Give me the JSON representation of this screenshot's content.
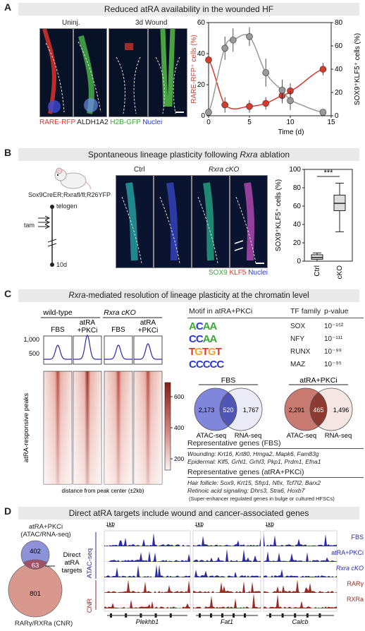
{
  "panel_a": {
    "letter": "A",
    "title": "Reduced atRA availability in the wounded HF",
    "image_labels": {
      "uninj": "Uninj.",
      "wound": "3d Wound"
    },
    "stain": {
      "rare": "RARE-RFP",
      "aldh": "ALDH1A2",
      "h2b": "H2B-GFP",
      "nuclei": "Nuclei"
    },
    "colors": {
      "rare": "#e8342a",
      "aldh": "#222222",
      "h2b": "#3aa83a",
      "nuclei": "#2a39d6"
    },
    "chart_data": {
      "type": "line",
      "xlabel": "Time (d)",
      "xlim": [
        0,
        15
      ],
      "xticks": [
        0,
        5,
        10,
        15
      ],
      "ylabel_left": "RARE-RFP⁺ cells (%)",
      "ylim_left": [
        0,
        60
      ],
      "yticks_left": [
        0,
        20,
        40,
        60
      ],
      "ylabel_right": "SOX9⁺KLF5⁺ cells (%)",
      "ylim_right": [
        0,
        80
      ],
      "yticks_right": [
        0,
        20,
        40,
        60,
        80
      ],
      "series": [
        {
          "axis": "left",
          "color": "#d63a2a",
          "points": [
            [
              0,
              36,
              8
            ],
            [
              2,
              7,
              5
            ],
            [
              5,
              6,
              4
            ],
            [
              7,
              8,
              4
            ],
            [
              9,
              13,
              5
            ],
            [
              10,
              16,
              5
            ],
            [
              14,
              30,
              4
            ]
          ]
        },
        {
          "axis": "right",
          "color": "#999999",
          "points": [
            [
              0,
              3,
              3
            ],
            [
              2,
              58,
              10
            ],
            [
              3,
              65,
              10
            ],
            [
              5,
              68,
              8
            ],
            [
              7,
              37,
              12
            ],
            [
              9,
              22,
              9
            ],
            [
              10,
              13,
              8
            ],
            [
              14,
              3,
              2
            ]
          ]
        }
      ]
    }
  },
  "panel_b": {
    "letter": "B",
    "title_pre": "Spontaneous lineage plasticity following ",
    "title_gene": "Rxra",
    "title_post": " ablation",
    "mouse_label": "Sox9CreER;Rxrafl/fl;R26YFP",
    "timeline": {
      "telogen": "telogen",
      "tam": "tam",
      "day": "10d"
    },
    "image_labels": {
      "ctrl": "Ctrl",
      "cko": "Rxra cKO"
    },
    "stain": {
      "sox9": "SOX9",
      "klf5": "KLF5",
      "nuclei": "Nuclei"
    },
    "colors": {
      "sox9": "#3aa83a",
      "klf5": "#e8342a",
      "nuclei": "#2a39d6"
    },
    "chart_data": {
      "type": "box",
      "ylabel": "SOX9⁺KLF5⁺ cells (%)",
      "ylim": [
        0,
        100
      ],
      "yticks": [
        0,
        20,
        40,
        60,
        80,
        100
      ],
      "categories": [
        "Ctrl",
        "cKO"
      ],
      "boxes": [
        {
          "min": 0,
          "q1": 2,
          "median": 4,
          "q3": 7,
          "max": 9
        },
        {
          "min": 32,
          "q1": 55,
          "median": 63,
          "q3": 72,
          "max": 85
        }
      ],
      "significance": "***"
    }
  },
  "panel_c": {
    "letter": "C",
    "title_gene": "Rxra",
    "title_post": "-mediated resolution of lineage plasticity at the chromatin level",
    "groups": {
      "wt": "wild-type",
      "cko": "Rxra cKO"
    },
    "columns": [
      "FBS",
      "atRA +PKCi",
      "FBS",
      "atRA +PKCi"
    ],
    "profile_yticks": [
      "1,000",
      "500"
    ],
    "heatmap_ylabel": "atRA-responsive peaks",
    "heatmap_xlabel": "distance from peak center (±2kb)",
    "colorbar_ticks": [
      600,
      400,
      200
    ],
    "motif_header": "Motif in atRA+PKCi",
    "motif_seqs": [
      "ACAA",
      "CCAA",
      "TGTGT",
      "CCCCC"
    ],
    "tf_header": "TF family",
    "pval_header": "p-value",
    "motifs": [
      {
        "tf": "SOX",
        "p": "10⁻¹⁵²"
      },
      {
        "tf": "NFY",
        "p": "10⁻¹¹¹"
      },
      {
        "tf": "RUNX",
        "p": "10⁻⁹⁹"
      },
      {
        "tf": "MAZ",
        "p": "10⁻⁹⁵"
      }
    ],
    "venn_fbs": {
      "title": "FBS",
      "left": "2,173",
      "mid": "520",
      "right": "1,767",
      "l_label": "ATAC-seq",
      "r_label": "RNA-seq"
    },
    "venn_pkci": {
      "title": "atRA+PKCi",
      "left": "2,291",
      "mid": "465",
      "right": "1,496",
      "l_label": "ATAC-seq",
      "r_label": "RNA-seq"
    },
    "rep_fbs_title": "Representative genes (FBS)",
    "rep_fbs_lines": [
      "Wounding: Krt16, Krt80, Hmga2, Mapk6, Fam83g",
      "Epidermal: Klf5, Grhl1, Grhl3, Pkp1, Prdm1, Efna1"
    ],
    "rep_pkci_title": "Representative genes (atRA+PKCi)",
    "rep_pkci_lines": [
      "Hair follicle: Sox9, Krt15, Sfrp1, Nfix, Tcf7l2, Barx2",
      "Retinoic acid signaling: Dhrs3, Stra6, Hoxb7"
    ],
    "footnote": "(Super-enhancer regulated genes in bulge or cultured HFSCs)"
  },
  "panel_d": {
    "letter": "D",
    "title": "Direct atRA targets include wound and cancer-associated genes",
    "venn_top_label": "atRA+PKCi (ATAC/RNA-seq)",
    "venn_bottom_label": "RARγ/RXRa (CNR)",
    "venn_values": {
      "top": "402",
      "mid": "63",
      "bottom": "801"
    },
    "direct_label": "Direct atRA targets",
    "track_scale": "1kb",
    "assay_atac": "ATAC-seq",
    "assay_cnr": "CNR",
    "track_names": [
      "FBS",
      "atRA+PKCi",
      "Rxra cKO",
      "RARγ",
      "RXRa"
    ],
    "track_colors": [
      "#2a2aa8",
      "#2a2aa8",
      "#2a2aa8",
      "#9a2a22",
      "#9a2a22"
    ],
    "genes": [
      "Plekhb1",
      "Fat1",
      "Calcb"
    ]
  }
}
